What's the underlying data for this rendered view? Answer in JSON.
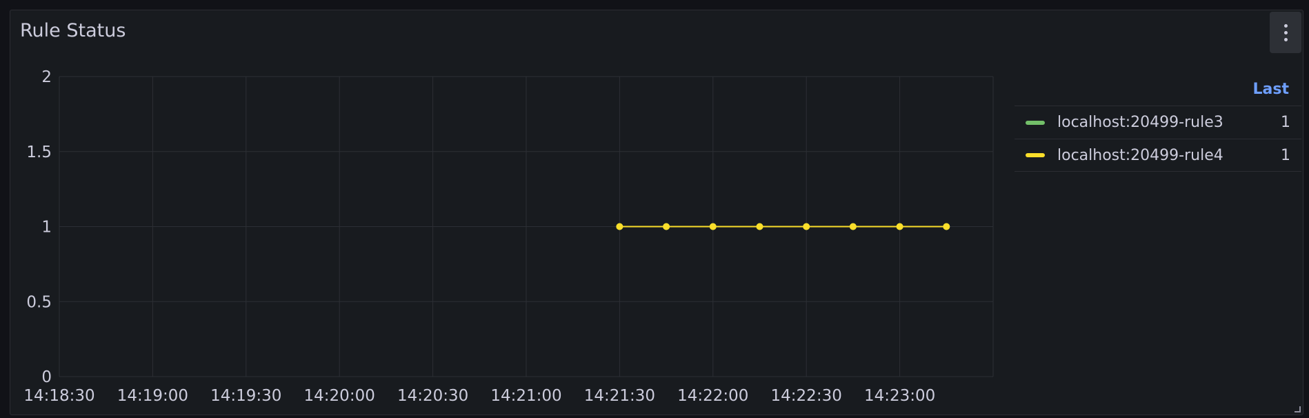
{
  "panel": {
    "title": "Rule Status",
    "menu_icon": "kebab-menu-icon"
  },
  "legend": {
    "column_header": "Last",
    "items": [
      {
        "name": "localhost:20499-rule3",
        "last": "1",
        "color": "#73bf69"
      },
      {
        "name": "localhost:20499-rule4",
        "last": "1",
        "color": "#fade2a"
      }
    ]
  },
  "colors": {
    "background": "#181b1f",
    "grid": "#2c2f35",
    "text": "#ccccdc",
    "accent": "#6e9fff"
  },
  "chart_data": {
    "type": "line",
    "x_axis": "time",
    "xlim": [
      "14:18:30",
      "14:23:30"
    ],
    "x_ticks": [
      "14:18:30",
      "14:19:00",
      "14:19:30",
      "14:20:00",
      "14:20:30",
      "14:21:00",
      "14:21:30",
      "14:22:00",
      "14:22:30",
      "14:23:00"
    ],
    "ylim": [
      0,
      2
    ],
    "y_ticks": [
      "0",
      "0.5",
      "1",
      "1.5",
      "2"
    ],
    "grid": true,
    "legend_placement": "right",
    "series": [
      {
        "name": "localhost:20499-rule3",
        "color": "#73bf69",
        "x": [
          "14:21:30",
          "14:21:45",
          "14:22:00",
          "14:22:15",
          "14:22:30",
          "14:22:45",
          "14:23:00",
          "14:23:15"
        ],
        "y": [
          1,
          1,
          1,
          1,
          1,
          1,
          1,
          1
        ]
      },
      {
        "name": "localhost:20499-rule4",
        "color": "#fade2a",
        "x": [
          "14:21:30",
          "14:21:45",
          "14:22:00",
          "14:22:15",
          "14:22:30",
          "14:22:45",
          "14:23:00",
          "14:23:15"
        ],
        "y": [
          1,
          1,
          1,
          1,
          1,
          1,
          1,
          1
        ]
      }
    ]
  }
}
